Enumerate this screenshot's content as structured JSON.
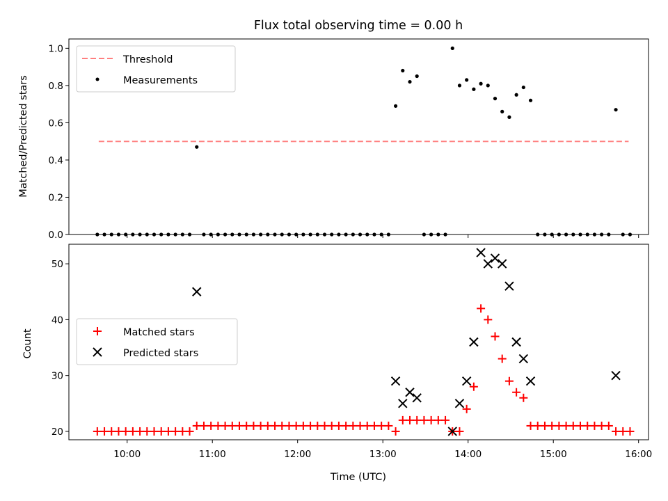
{
  "chart_data": {
    "type": "scatter",
    "title": "Flux total observing time = 0.00 h",
    "panels": [
      {
        "id": "ratio",
        "ylabel": "Matched/Predicted stars",
        "xlabel": "",
        "ylim": [
          0,
          1.05
        ],
        "yticks": [
          0.0,
          0.2,
          0.4,
          0.6,
          0.8,
          1.0
        ],
        "ytick_labels": [
          "0.0",
          "0.2",
          "0.4",
          "0.6",
          "0.8",
          "1.0"
        ],
        "legend": {
          "placement": "upper left",
          "entries": [
            {
              "label": "Threshold",
              "style": "dashed-line",
              "color": "#ff7f7f"
            },
            {
              "label": "Measurements",
              "style": "dot",
              "color": "#000000"
            }
          ]
        },
        "threshold": {
          "name": "Threshold",
          "value": 0.5,
          "x_range": [
            "09:40",
            "15:53"
          ],
          "color": "#ff7f7f"
        },
        "series": [
          {
            "name": "Measurements",
            "marker": "dot",
            "color": "#000000",
            "points": [
              [
                "09:39",
                0
              ],
              [
                "09:44",
                0
              ],
              [
                "09:49",
                0
              ],
              [
                "09:54",
                0
              ],
              [
                "09:59",
                0
              ],
              [
                "10:04",
                0
              ],
              [
                "10:09",
                0
              ],
              [
                "10:14",
                0
              ],
              [
                "10:19",
                0
              ],
              [
                "10:24",
                0
              ],
              [
                "10:29",
                0
              ],
              [
                "10:34",
                0
              ],
              [
                "10:39",
                0
              ],
              [
                "10:44",
                0
              ],
              [
                "10:49",
                0.47
              ],
              [
                "10:54",
                0
              ],
              [
                "10:59",
                0
              ],
              [
                "11:04",
                0
              ],
              [
                "11:09",
                0
              ],
              [
                "11:14",
                0
              ],
              [
                "11:19",
                0
              ],
              [
                "11:24",
                0
              ],
              [
                "11:29",
                0
              ],
              [
                "11:34",
                0
              ],
              [
                "11:39",
                0
              ],
              [
                "11:44",
                0
              ],
              [
                "11:49",
                0
              ],
              [
                "11:54",
                0
              ],
              [
                "11:59",
                0
              ],
              [
                "12:04",
                0
              ],
              [
                "12:09",
                0
              ],
              [
                "12:14",
                0
              ],
              [
                "12:19",
                0
              ],
              [
                "12:24",
                0
              ],
              [
                "12:29",
                0
              ],
              [
                "12:34",
                0
              ],
              [
                "12:39",
                0
              ],
              [
                "12:44",
                0
              ],
              [
                "12:49",
                0
              ],
              [
                "12:54",
                0
              ],
              [
                "12:59",
                0
              ],
              [
                "13:04",
                0
              ],
              [
                "13:09",
                0.69
              ],
              [
                "13:14",
                0.88
              ],
              [
                "13:19",
                0.82
              ],
              [
                "13:24",
                0.85
              ],
              [
                "13:29",
                0
              ],
              [
                "13:34",
                0
              ],
              [
                "13:39",
                0
              ],
              [
                "13:44",
                0
              ],
              [
                "13:49",
                1.0
              ],
              [
                "13:54",
                0.8
              ],
              [
                "13:59",
                0.83
              ],
              [
                "14:04",
                0.78
              ],
              [
                "14:09",
                0.81
              ],
              [
                "14:14",
                0.8
              ],
              [
                "14:19",
                0.73
              ],
              [
                "14:24",
                0.66
              ],
              [
                "14:29",
                0.63
              ],
              [
                "14:34",
                0.75
              ],
              [
                "14:39",
                0.79
              ],
              [
                "14:44",
                0.72
              ],
              [
                "14:49",
                0
              ],
              [
                "14:54",
                0
              ],
              [
                "14:59",
                0
              ],
              [
                "15:04",
                0
              ],
              [
                "15:09",
                0
              ],
              [
                "15:14",
                0
              ],
              [
                "15:19",
                0
              ],
              [
                "15:24",
                0
              ],
              [
                "15:29",
                0
              ],
              [
                "15:34",
                0
              ],
              [
                "15:39",
                0
              ],
              [
                "15:44",
                0.67
              ],
              [
                "15:49",
                0
              ],
              [
                "15:54",
                0
              ]
            ]
          }
        ]
      },
      {
        "id": "count",
        "ylabel": "Count",
        "xlabel": "Time (UTC)",
        "ylim": [
          18.5,
          53.5
        ],
        "yticks": [
          20,
          30,
          40,
          50
        ],
        "ytick_labels": [
          "20",
          "30",
          "40",
          "50"
        ],
        "xticks": [
          "10:00",
          "11:00",
          "12:00",
          "13:00",
          "14:00",
          "15:00",
          "16:00"
        ],
        "xlim": [
          "09:19",
          "16:07"
        ],
        "legend": {
          "placement": "center left",
          "entries": [
            {
              "label": "Matched stars",
              "style": "plus",
              "color": "#ff0000"
            },
            {
              "label": "Predicted stars",
              "style": "x",
              "color": "#000000"
            }
          ]
        },
        "series": [
          {
            "name": "Matched stars",
            "marker": "plus",
            "color": "#ff0000",
            "points": [
              [
                "09:39",
                20
              ],
              [
                "09:44",
                20
              ],
              [
                "09:49",
                20
              ],
              [
                "09:54",
                20
              ],
              [
                "09:59",
                20
              ],
              [
                "10:04",
                20
              ],
              [
                "10:09",
                20
              ],
              [
                "10:14",
                20
              ],
              [
                "10:19",
                20
              ],
              [
                "10:24",
                20
              ],
              [
                "10:29",
                20
              ],
              [
                "10:34",
                20
              ],
              [
                "10:39",
                20
              ],
              [
                "10:44",
                20
              ],
              [
                "10:49",
                21
              ],
              [
                "10:54",
                21
              ],
              [
                "10:59",
                21
              ],
              [
                "11:04",
                21
              ],
              [
                "11:09",
                21
              ],
              [
                "11:14",
                21
              ],
              [
                "11:19",
                21
              ],
              [
                "11:24",
                21
              ],
              [
                "11:29",
                21
              ],
              [
                "11:34",
                21
              ],
              [
                "11:39",
                21
              ],
              [
                "11:44",
                21
              ],
              [
                "11:49",
                21
              ],
              [
                "11:54",
                21
              ],
              [
                "11:59",
                21
              ],
              [
                "12:04",
                21
              ],
              [
                "12:09",
                21
              ],
              [
                "12:14",
                21
              ],
              [
                "12:19",
                21
              ],
              [
                "12:24",
                21
              ],
              [
                "12:29",
                21
              ],
              [
                "12:34",
                21
              ],
              [
                "12:39",
                21
              ],
              [
                "12:44",
                21
              ],
              [
                "12:49",
                21
              ],
              [
                "12:54",
                21
              ],
              [
                "12:59",
                21
              ],
              [
                "13:04",
                21
              ],
              [
                "13:09",
                20
              ],
              [
                "13:14",
                22
              ],
              [
                "13:19",
                22
              ],
              [
                "13:24",
                22
              ],
              [
                "13:29",
                22
              ],
              [
                "13:34",
                22
              ],
              [
                "13:39",
                22
              ],
              [
                "13:44",
                22
              ],
              [
                "13:49",
                20
              ],
              [
                "13:54",
                20
              ],
              [
                "13:59",
                24
              ],
              [
                "14:04",
                28
              ],
              [
                "14:09",
                42
              ],
              [
                "14:14",
                40
              ],
              [
                "14:19",
                37
              ],
              [
                "14:24",
                33
              ],
              [
                "14:29",
                29
              ],
              [
                "14:34",
                27
              ],
              [
                "14:39",
                26
              ],
              [
                "14:44",
                21
              ],
              [
                "14:49",
                21
              ],
              [
                "14:54",
                21
              ],
              [
                "14:59",
                21
              ],
              [
                "15:04",
                21
              ],
              [
                "15:09",
                21
              ],
              [
                "15:14",
                21
              ],
              [
                "15:19",
                21
              ],
              [
                "15:24",
                21
              ],
              [
                "15:29",
                21
              ],
              [
                "15:34",
                21
              ],
              [
                "15:39",
                21
              ],
              [
                "15:44",
                20
              ],
              [
                "15:49",
                20
              ],
              [
                "15:54",
                20
              ]
            ]
          },
          {
            "name": "Predicted stars",
            "marker": "x",
            "color": "#000000",
            "points": [
              [
                "10:49",
                45
              ],
              [
                "13:09",
                29
              ],
              [
                "13:14",
                25
              ],
              [
                "13:19",
                27
              ],
              [
                "13:24",
                26
              ],
              [
                "13:49",
                20
              ],
              [
                "13:54",
                25
              ],
              [
                "13:59",
                29
              ],
              [
                "14:04",
                36
              ],
              [
                "14:09",
                52
              ],
              [
                "14:14",
                50
              ],
              [
                "14:19",
                51
              ],
              [
                "14:24",
                50
              ],
              [
                "14:29",
                46
              ],
              [
                "14:34",
                36
              ],
              [
                "14:39",
                33
              ],
              [
                "14:44",
                29
              ],
              [
                "15:44",
                30
              ]
            ]
          }
        ]
      }
    ]
  }
}
